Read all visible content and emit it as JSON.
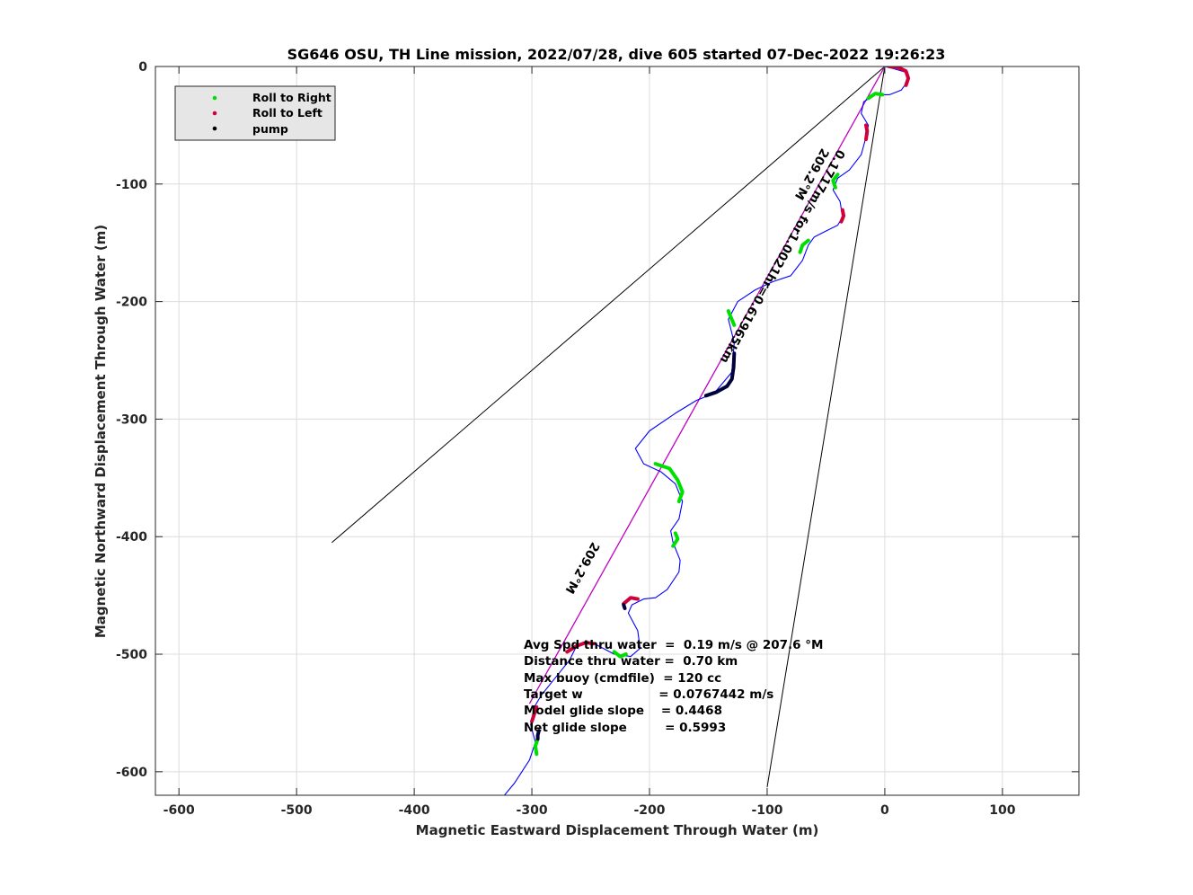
{
  "chart_data": {
    "type": "line",
    "title": "SG646 OSU, TH Line mission, 2022/07/28, dive 605 started 07-Dec-2022 19:26:23",
    "xlabel": "Magnetic Eastward Displacement Through Water (m)",
    "ylabel": "Magnetic Northward Displacement Through Water (m)",
    "xlim": [
      -620,
      165
    ],
    "ylim": [
      -620,
      0
    ],
    "x_ticks": [
      -600,
      -500,
      -400,
      -300,
      -200,
      -100,
      0,
      100
    ],
    "y_ticks": [
      0,
      -100,
      -200,
      -300,
      -400,
      -500,
      -600
    ],
    "grid": true,
    "legend_position": "top-left",
    "legend": [
      {
        "label": "Roll to Right",
        "color": "#00e000"
      },
      {
        "label": "Roll to Left",
        "color": "#d0003a"
      },
      {
        "label": "pump",
        "color": "#000000"
      }
    ],
    "track": {
      "name": "track",
      "color": "#0000ff",
      "x": [
        0,
        8,
        18,
        20,
        14,
        4,
        -8,
        -18,
        -20,
        -14,
        -16,
        -20,
        -30,
        -40,
        -44,
        -38,
        -36,
        -40,
        -50,
        -60,
        -65,
        -70,
        -80,
        -95,
        -110,
        -125,
        -133,
        -128,
        -130,
        -145,
        -160,
        -178,
        -200,
        -212,
        -205,
        -190,
        -178,
        -172,
        -175,
        -182,
        -180,
        -174,
        -175,
        -185,
        -195,
        -205,
        -215,
        -218,
        -210,
        -208,
        -216,
        -230,
        -245,
        -255,
        -262,
        -268,
        -276,
        -284,
        -292,
        -298,
        -301,
        -297,
        -302,
        -315,
        -325
      ],
      "y": [
        0,
        -2,
        -5,
        -12,
        -20,
        -24,
        -24,
        -30,
        -40,
        -50,
        -60,
        -75,
        -88,
        -95,
        -105,
        -115,
        -128,
        -135,
        -140,
        -145,
        -152,
        -165,
        -178,
        -183,
        -190,
        -200,
        -215,
        -235,
        -260,
        -278,
        -284,
        -295,
        -310,
        -325,
        -338,
        -345,
        -355,
        -370,
        -385,
        -395,
        -405,
        -420,
        -430,
        -445,
        -452,
        -453,
        -458,
        -465,
        -480,
        -495,
        -502,
        -500,
        -492,
        -490,
        -493,
        -505,
        -515,
        -525,
        -535,
        -545,
        -560,
        -575,
        -590,
        -610,
        -622
      ]
    },
    "roll_right_segments": [
      {
        "x": [
          -2,
          -8,
          -14
        ],
        "y": [
          -24,
          -23,
          -27
        ]
      },
      {
        "x": [
          -40,
          -44,
          -42
        ],
        "y": [
          -92,
          -97,
          -103
        ]
      },
      {
        "x": [
          -65,
          -70,
          -72
        ],
        "y": [
          -148,
          -152,
          -158
        ]
      },
      {
        "x": [
          -128,
          -131,
          -133
        ],
        "y": [
          -220,
          -213,
          -208
        ]
      },
      {
        "x": [
          -195,
          -183,
          -176,
          -172,
          -175
        ],
        "y": [
          -338,
          -342,
          -352,
          -362,
          -370
        ]
      },
      {
        "x": [
          -178,
          -176,
          -180
        ],
        "y": [
          -397,
          -402,
          -408
        ]
      },
      {
        "x": [
          -230,
          -225,
          -220
        ],
        "y": [
          -498,
          -502,
          -500
        ]
      },
      {
        "x": [
          -295,
          -297,
          -296
        ],
        "y": [
          -572,
          -578,
          -585
        ]
      }
    ],
    "roll_left_segments": [
      {
        "x": [
          4,
          12,
          18,
          20,
          18
        ],
        "y": [
          0,
          -1,
          -4,
          -10,
          -16
        ]
      },
      {
        "x": [
          -16,
          -15,
          -16
        ],
        "y": [
          -50,
          -55,
          -62
        ]
      },
      {
        "x": [
          -36,
          -35,
          -37
        ],
        "y": [
          -122,
          -127,
          -132
        ]
      },
      {
        "x": [
          -222,
          -216,
          -210
        ],
        "y": [
          -457,
          -452,
          -453
        ]
      },
      {
        "x": [
          -270,
          -262,
          -254,
          -248
        ],
        "y": [
          -498,
          -493,
          -490,
          -491
        ]
      },
      {
        "x": [
          -296,
          -298,
          -300
        ],
        "y": [
          -545,
          -551,
          -557
        ]
      }
    ],
    "pump_segments": [
      {
        "x": [
          -128,
          -128.5,
          -130,
          -134,
          -143,
          -152
        ],
        "y": [
          -244,
          -256,
          -266,
          -272,
          -277,
          -280
        ]
      },
      {
        "x": [
          -294,
          -295,
          -295
        ],
        "y": [
          -565,
          -569,
          -572
        ]
      },
      {
        "x": [
          -222,
          -221
        ],
        "y": [
          -458,
          -461
        ]
      }
    ],
    "reference_lines": [
      {
        "name": "heading-line-1",
        "color": "#000000",
        "x": [
          0,
          -470
        ],
        "y": [
          0,
          -405
        ]
      },
      {
        "name": "heading-line-2",
        "color": "#000000",
        "x": [
          0,
          -100
        ],
        "y": [
          0,
          -613
        ]
      },
      {
        "name": "net-track-line",
        "color": "#000000",
        "x": [
          0,
          -302
        ],
        "y": [
          0,
          -542
        ]
      },
      {
        "name": "current-line",
        "color": "#cc00cc",
        "x": [
          0,
          -302
        ],
        "y": [
          0,
          -542
        ]
      }
    ],
    "annotations": [
      {
        "text": "209.2°M",
        "x": -65,
        "y": -90,
        "angle": -60.8
      },
      {
        "text": "0.1717m/s for1.0021hr=0.61965km",
        "x": -90,
        "y": -160,
        "angle": -60.8
      },
      {
        "text": "209.2°M",
        "x": -260,
        "y": -425,
        "angle": -60.8
      }
    ],
    "stats": [
      "Avg Spd thru water  =  0.19 m/s @ 207.6 °M",
      "Distance thru water =  0.70 km",
      "Max buoy (cmdfile)  = 120 cc",
      "Target w                  = 0.0767442 m/s",
      "Model glide slope    = 0.4468",
      "Net glide slope         = 0.5993"
    ]
  }
}
